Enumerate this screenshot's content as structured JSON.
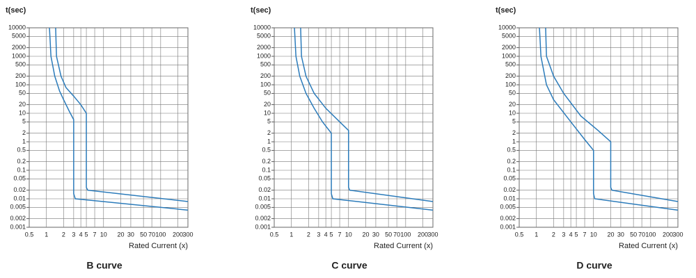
{
  "chart_data": [
    {
      "type": "line",
      "y_label": "t(sec)",
      "x_label": "Rated Current (x)",
      "caption": "B  curve",
      "xscale": "log",
      "yscale": "log",
      "xlim": [
        0.5,
        300
      ],
      "ylim": [
        0.001,
        10000
      ],
      "xticks": [
        0.5,
        1,
        2,
        3,
        4,
        5,
        7,
        10,
        20,
        30,
        50,
        70,
        100,
        200,
        300
      ],
      "yticks": [
        10000,
        5000,
        2000,
        1000,
        500,
        200,
        100,
        50,
        20,
        10,
        5,
        2,
        1,
        0.5,
        0.2,
        0.1,
        0.05,
        0.02,
        0.01,
        0.005,
        0.002,
        0.001
      ],
      "grid": true,
      "series": [
        {
          "color": "#2b7bba",
          "x": [
            1.13,
            1.2,
            1.4,
            1.7,
            2,
            2.5,
            3,
            3,
            3.2,
            300
          ],
          "values": [
            10000,
            1000,
            200,
            60,
            30,
            12,
            6,
            0.015,
            0.01,
            0.004
          ]
        },
        {
          "color": "#2b7bba",
          "x": [
            1.45,
            1.5,
            1.8,
            2.2,
            3,
            4,
            5,
            5,
            5.3,
            300
          ],
          "values": [
            10000,
            1000,
            200,
            80,
            40,
            20,
            10,
            0.025,
            0.02,
            0.008
          ]
        }
      ]
    },
    {
      "type": "line",
      "y_label": "t(sec)",
      "x_label": "Rated Current (x)",
      "caption": "C  curve",
      "xscale": "log",
      "yscale": "log",
      "xlim": [
        0.5,
        300
      ],
      "ylim": [
        0.001,
        10000
      ],
      "xticks": [
        0.5,
        1,
        2,
        3,
        4,
        5,
        7,
        10,
        20,
        30,
        50,
        70,
        100,
        200,
        300
      ],
      "yticks": [
        10000,
        5000,
        2000,
        1000,
        500,
        200,
        100,
        50,
        20,
        10,
        5,
        2,
        1,
        0.5,
        0.2,
        0.1,
        0.05,
        0.02,
        0.01,
        0.005,
        0.002,
        0.001
      ],
      "grid": true,
      "series": [
        {
          "color": "#2b7bba",
          "x": [
            1.13,
            1.2,
            1.4,
            1.8,
            2.5,
            3.5,
            5,
            5,
            5.3,
            300
          ],
          "values": [
            10000,
            1000,
            200,
            50,
            15,
            5,
            2,
            0.015,
            0.01,
            0.004
          ]
        },
        {
          "color": "#2b7bba",
          "x": [
            1.45,
            1.5,
            1.8,
            2.5,
            4,
            7,
            10,
            10,
            10.5,
            300
          ],
          "values": [
            10000,
            1000,
            200,
            50,
            15,
            5,
            2.5,
            0.025,
            0.02,
            0.008
          ]
        }
      ]
    },
    {
      "type": "line",
      "y_label": "t(sec)",
      "x_label": "Rated Current (x)",
      "caption": "D  curve",
      "xscale": "log",
      "yscale": "log",
      "xlim": [
        0.5,
        300
      ],
      "ylim": [
        0.001,
        10000
      ],
      "xticks": [
        0.5,
        1,
        2,
        3,
        4,
        5,
        7,
        10,
        20,
        30,
        50,
        70,
        100,
        200,
        300
      ],
      "yticks": [
        10000,
        5000,
        2000,
        1000,
        500,
        200,
        100,
        50,
        20,
        10,
        5,
        2,
        1,
        0.5,
        0.2,
        0.1,
        0.05,
        0.02,
        0.01,
        0.005,
        0.002,
        0.001
      ],
      "grid": true,
      "series": [
        {
          "color": "#2b7bba",
          "x": [
            1.13,
            1.2,
            1.5,
            2,
            4,
            7,
            10,
            10,
            10.5,
            300
          ],
          "values": [
            10000,
            1000,
            100,
            30,
            5,
            1.2,
            0.5,
            0.015,
            0.01,
            0.004
          ]
        },
        {
          "color": "#2b7bba",
          "x": [
            1.45,
            1.5,
            2,
            3,
            6,
            12,
            20,
            20,
            21,
            300
          ],
          "values": [
            10000,
            1000,
            200,
            50,
            8,
            2.5,
            1,
            0.025,
            0.02,
            0.008
          ]
        }
      ]
    }
  ]
}
